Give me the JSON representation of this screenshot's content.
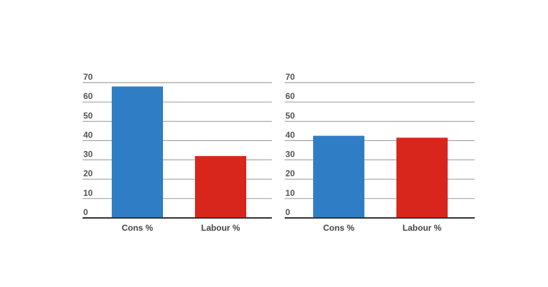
{
  "chart_data": [
    {
      "type": "bar",
      "categories": [
        "Cons %",
        "Labour %"
      ],
      "values": [
        68,
        32
      ],
      "ylim": [
        0,
        70
      ],
      "yticks": [
        "0",
        "10",
        "20",
        "30",
        "40",
        "50",
        "60",
        "70"
      ],
      "grid": true,
      "colors": [
        "#2f7ec5",
        "#d9261c"
      ]
    },
    {
      "type": "bar",
      "categories": [
        "Cons %",
        "Labour %"
      ],
      "values": [
        42.5,
        41.5
      ],
      "ylim": [
        0,
        70
      ],
      "yticks": [
        "0",
        "10",
        "20",
        "30",
        "40",
        "50",
        "60",
        "70"
      ],
      "grid": true,
      "colors": [
        "#2f7ec5",
        "#d9261c"
      ]
    }
  ]
}
